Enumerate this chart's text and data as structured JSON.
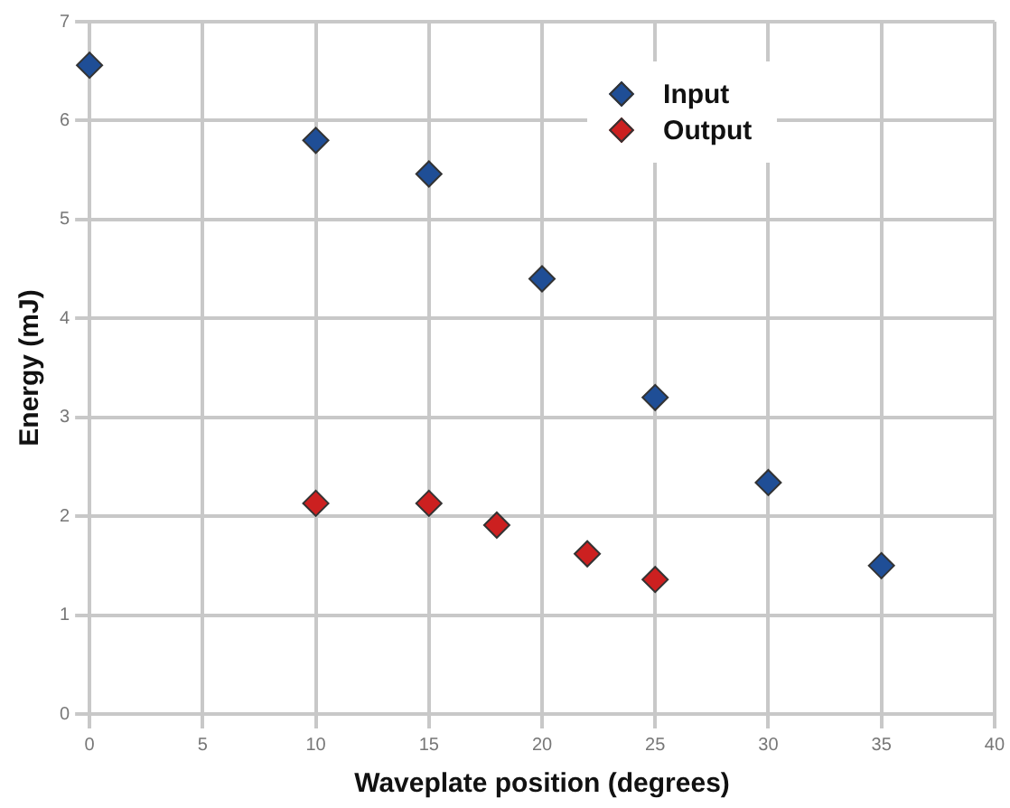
{
  "chart_data": {
    "type": "scatter",
    "xlabel": "Waveplate position (degrees)",
    "ylabel": "Energy (mJ)",
    "xlim": [
      0,
      40
    ],
    "xticks": [
      0,
      5,
      10,
      15,
      20,
      25,
      30,
      35,
      40
    ],
    "ylim": [
      0,
      7
    ],
    "yticks": [
      0,
      1,
      2,
      3,
      4,
      5,
      6,
      7
    ],
    "grid": true,
    "legend": "top right",
    "marker": "diamond",
    "series": [
      {
        "name": "Input",
        "color": "#1f4e96",
        "x": [
          0,
          10,
          15,
          20,
          25,
          30,
          35
        ],
        "values": [
          6.56,
          5.8,
          5.46,
          4.4,
          3.2,
          2.34,
          1.5
        ]
      },
      {
        "name": "Output",
        "color": "#cc2020",
        "x": [
          10,
          15,
          18,
          22,
          25
        ],
        "values": [
          2.13,
          2.13,
          1.91,
          1.62,
          1.36
        ]
      }
    ]
  }
}
